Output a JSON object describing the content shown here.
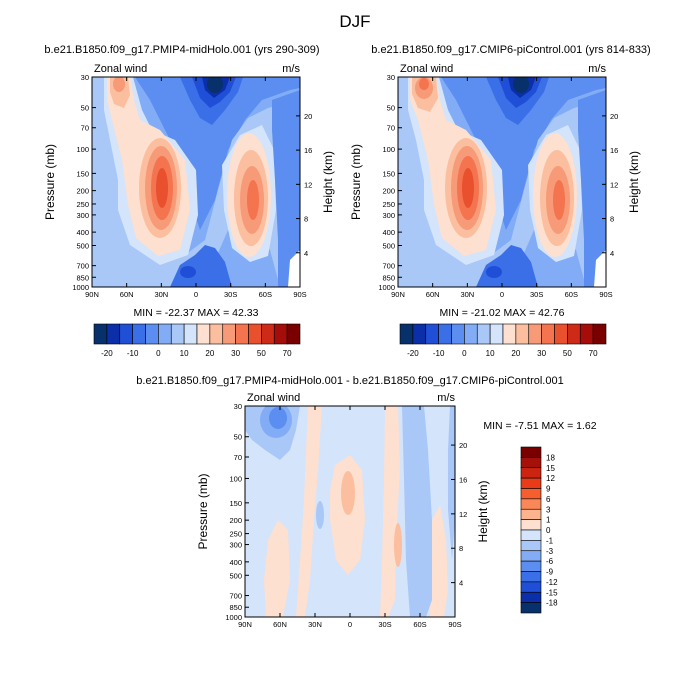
{
  "figure_title": "DJF",
  "y_left_label": "Pressure (mb)",
  "y_right_label": "Height (km)",
  "corner_left": "Zonal wind",
  "corner_right": "m/s",
  "pressure_ticks": [
    "30",
    "50",
    "70",
    "100",
    "150",
    "200",
    "250",
    "300",
    "400",
    "500",
    "700",
    "850",
    "1000"
  ],
  "height_ticks": [
    "4",
    "8",
    "12",
    "16",
    "20"
  ],
  "lat_ticks": [
    "90N",
    "60N",
    "30N",
    "0",
    "30S",
    "60S",
    "90S"
  ],
  "panels": [
    {
      "title": "b.e21.B1850.f09_g17.PMIP4-midHolo.001 (yrs 290-309)",
      "min_max": "MIN = -22.37  MAX =  42.33"
    },
    {
      "title": "b.e21.B1850.f09_g17.CMIP6-piControl.001 (yrs 814-833)",
      "min_max": "MIN = -21.02  MAX =  42.76"
    },
    {
      "title": "b.e21.B1850.f09_g17.PMIP4-midHolo.001 - b.e21.B1850.f09_g17.CMIP6-piControl.001",
      "min_max": "MIN =  -7.51  MAX =    1.62"
    }
  ],
  "colorbar_main_labels": [
    "-20",
    "-10",
    "0",
    "10",
    "20",
    "30",
    "50",
    "70"
  ],
  "colorbar_diff_labels": [
    "18",
    "15",
    "12",
    "9",
    "6",
    "3",
    "1",
    "0",
    "-1",
    "-3",
    "-6",
    "-9",
    "-12",
    "-15",
    "-18"
  ],
  "colors_main": [
    "#08306b",
    "#0a2fa8",
    "#1f4fd6",
    "#3a6fe8",
    "#5b8ef0",
    "#82acf5",
    "#a9c8f8",
    "#d4e4fb",
    "#fde0cf",
    "#fbbfa0",
    "#f79a77",
    "#f4744f",
    "#e8502e",
    "#cd2b17",
    "#a40d0a",
    "#7a0000"
  ],
  "colors_diff": [
    "#7a0000",
    "#a51008",
    "#cc2410",
    "#ea3b18",
    "#f65e2d",
    "#f98758",
    "#fcb48f",
    "#fde0cf",
    "#d4e4fb",
    "#a9c8f8",
    "#82acf5",
    "#5b8ef0",
    "#3a6fe8",
    "#1f4fd6",
    "#0a2fa8",
    "#08306b"
  ],
  "chart_data": [
    {
      "type": "heatmap",
      "title": "b.e21.B1850.f09_g17.PMIP4-midHolo.001 (yrs 290-309)",
      "xlabel": "",
      "ylabel": "Pressure (mb)",
      "ylabel_right": "Height (km)",
      "x_ticks": [
        "90N",
        "60N",
        "30N",
        "0",
        "30S",
        "60S",
        "90S"
      ],
      "y_ticks_mb": [
        30,
        50,
        70,
        100,
        150,
        200,
        250,
        300,
        400,
        500,
        700,
        850,
        1000
      ],
      "ylim_mb": [
        1000,
        30
      ],
      "y_scale": "log",
      "contour_levels": [
        -20,
        -10,
        0,
        10,
        20,
        30,
        50,
        70
      ],
      "min": -22.37,
      "max": 42.33,
      "features": [
        {
          "kind": "jet",
          "lat": 30,
          "p_mb": 200,
          "value": 42.33
        },
        {
          "kind": "jet",
          "lat": -45,
          "p_mb": 200,
          "value": 30
        },
        {
          "kind": "easterly",
          "lat": -10,
          "p_mb": 30,
          "value": -22.37
        }
      ]
    },
    {
      "type": "heatmap",
      "title": "b.e21.B1850.f09_g17.CMIP6-piControl.001 (yrs 814-833)",
      "xlabel": "",
      "ylabel": "Pressure (mb)",
      "ylabel_right": "Height (km)",
      "x_ticks": [
        "90N",
        "60N",
        "30N",
        "0",
        "30S",
        "60S",
        "90S"
      ],
      "y_ticks_mb": [
        30,
        50,
        70,
        100,
        150,
        200,
        250,
        300,
        400,
        500,
        700,
        850,
        1000
      ],
      "ylim_mb": [
        1000,
        30
      ],
      "y_scale": "log",
      "contour_levels": [
        -20,
        -10,
        0,
        10,
        20,
        30,
        50,
        70
      ],
      "min": -21.02,
      "max": 42.76,
      "features": [
        {
          "kind": "jet",
          "lat": 30,
          "p_mb": 200,
          "value": 42.76
        },
        {
          "kind": "jet",
          "lat": -45,
          "p_mb": 200,
          "value": 30
        },
        {
          "kind": "easterly",
          "lat": -10,
          "p_mb": 30,
          "value": -21.02
        }
      ]
    },
    {
      "type": "heatmap",
      "title": "b.e21.B1850.f09_g17.PMIP4-midHolo.001 - b.e21.B1850.f09_g17.CMIP6-piControl.001",
      "xlabel": "",
      "ylabel": "Pressure (mb)",
      "ylabel_right": "Height (km)",
      "x_ticks": [
        "90N",
        "60N",
        "30N",
        "0",
        "30S",
        "60S",
        "90S"
      ],
      "y_ticks_mb": [
        30,
        50,
        70,
        100,
        150,
        200,
        250,
        300,
        400,
        500,
        700,
        850,
        1000
      ],
      "ylim_mb": [
        1000,
        30
      ],
      "y_scale": "log",
      "contour_levels": [
        -18,
        -15,
        -12,
        -9,
        -6,
        -3,
        -1,
        0,
        1,
        3,
        6,
        9,
        12,
        15,
        18
      ],
      "min": -7.51,
      "max": 1.62
    }
  ]
}
